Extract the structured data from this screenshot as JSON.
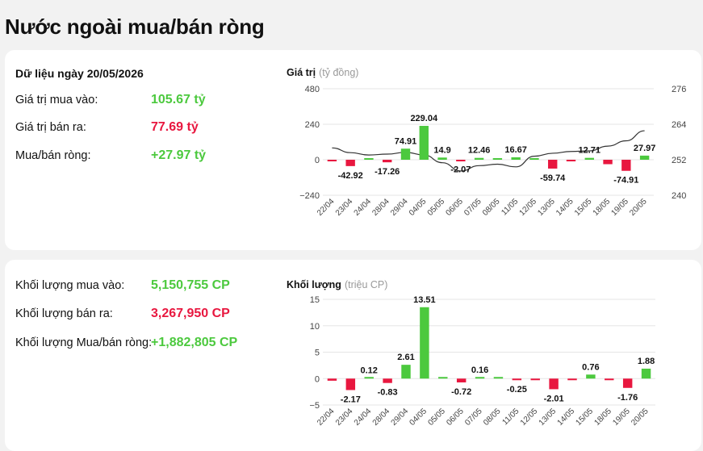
{
  "page_title": "Nước ngoài mua/bán ròng",
  "value_panel": {
    "heading": "Dữ liệu ngày 20/05/2026",
    "buy_label": "Giá trị mua vào:",
    "buy_value": "105.67 tỷ",
    "sell_label": "Giá trị bán ra:",
    "sell_value": "77.69 tỷ",
    "net_label": "Mua/bán ròng:",
    "net_value": "+27.97 tỷ"
  },
  "volume_panel": {
    "buy_label": "Khối lượng mua vào:",
    "buy_value": "5,150,755 CP",
    "sell_label": "Khối lượng bán ra:",
    "sell_value": "3,267,950 CP",
    "net_label": "Khối lượng Mua/bán ròng:",
    "net_value": "+1,882,805 CP"
  },
  "colors": {
    "positive": "#4cc93e",
    "negative": "#e8173f",
    "line": "#333333"
  },
  "chart_data": [
    {
      "type": "bar",
      "title": "Giá trị",
      "unit": "(tỷ đồng)",
      "categories": [
        "22/04",
        "23/04",
        "24/04",
        "28/04",
        "29/04",
        "04/05",
        "05/05",
        "06/05",
        "07/05",
        "08/05",
        "11/05",
        "12/05",
        "13/05",
        "14/05",
        "15/05",
        "18/05",
        "19/05",
        "20/05"
      ],
      "values": [
        -3.5,
        -42.92,
        2.5,
        -17.26,
        74.91,
        229.04,
        14.9,
        -2.07,
        12.46,
        3.5,
        16.67,
        6.0,
        -59.74,
        -4.5,
        12.71,
        -30.0,
        -74.91,
        27.97
      ],
      "data_labels": [
        "",
        "-42.92",
        "",
        "-17.26",
        "74.91",
        "229.04",
        "14.9",
        "-2.07",
        "12.46",
        "",
        "16.67",
        "",
        "-59.74",
        "",
        "12.71",
        "",
        "-74.91",
        "27.97"
      ],
      "ylim": [
        -240,
        480
      ],
      "yticks": [
        "480",
        "240",
        "0",
        "−240"
      ],
      "secondary_axis": {
        "ylim": [
          240,
          276
        ],
        "yticks": [
          "276",
          "264",
          "252",
          "240"
        ],
        "line_values": [
          256,
          254.4,
          253.6,
          253.9,
          254.5,
          253.6,
          251.0,
          248.2,
          250.0,
          250.5,
          249.6,
          253.2,
          254.2,
          254.8,
          255.0,
          256.6,
          258.4,
          261.8
        ]
      }
    },
    {
      "type": "bar",
      "title": "Khối lượng",
      "unit": "(triệu CP)",
      "categories": [
        "22/04",
        "23/04",
        "24/04",
        "28/04",
        "29/04",
        "04/05",
        "05/05",
        "06/05",
        "07/05",
        "08/05",
        "11/05",
        "12/05",
        "13/05",
        "14/05",
        "15/05",
        "18/05",
        "19/05",
        "20/05"
      ],
      "values": [
        -0.4,
        -2.17,
        0.12,
        -0.83,
        2.61,
        13.51,
        0.05,
        -0.72,
        0.16,
        0.05,
        -0.25,
        -0.2,
        -2.01,
        -0.3,
        0.76,
        -0.3,
        -1.76,
        1.88
      ],
      "data_labels": [
        "",
        "-2.17",
        "0.12",
        "-0.83",
        "2.61",
        "13.51",
        "",
        "-0.72",
        "0.16",
        "",
        "-0.25",
        "",
        "-2.01",
        "",
        "0.76",
        "",
        "-1.76",
        "1.88"
      ],
      "ylim": [
        -5,
        15
      ],
      "yticks": [
        "15",
        "10",
        "5",
        "0",
        "−5"
      ]
    }
  ]
}
